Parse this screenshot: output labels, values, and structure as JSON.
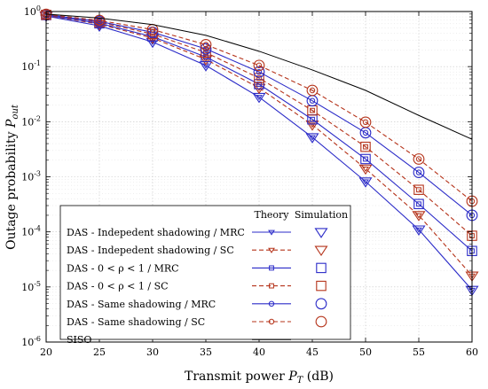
{
  "chart_data": {
    "type": "line",
    "yscale": "log",
    "xlabel_main": "Transmit power ",
    "xlabel_sym": "P",
    "xlabel_sub": "T",
    "xlabel_unit": " (dB)",
    "ylabel_main": "Outage probability ",
    "ylabel_sym": "P",
    "ylabel_sub": "out",
    "xlim": [
      20,
      60
    ],
    "ylim": [
      1e-06,
      1
    ],
    "x_ticks": [
      "20",
      "25",
      "30",
      "35",
      "40",
      "45",
      "50",
      "55",
      "60"
    ],
    "y_ticks": [
      {
        "base": "10",
        "exp": "0"
      },
      {
        "base": "10",
        "exp": "-1"
      },
      {
        "base": "10",
        "exp": "-2"
      },
      {
        "base": "10",
        "exp": "-3"
      },
      {
        "base": "10",
        "exp": "-4"
      },
      {
        "base": "10",
        "exp": "-5"
      },
      {
        "base": "10",
        "exp": "-6"
      }
    ],
    "grid": true,
    "legend_position": "bottom-left",
    "legend_header_theory": "Theory",
    "legend_header_simulation": "Simulation",
    "x": [
      20,
      25,
      30,
      35,
      40,
      45,
      50,
      55,
      60
    ],
    "colors": {
      "blue": "#2b2bc8",
      "red": "#b5331a",
      "black": "#000000"
    },
    "series": [
      {
        "name": "DAS - Indepedent shadowing / MRC",
        "color": "#2b2bc8",
        "dash": false,
        "marker": "triangle-down",
        "values": [
          0.83,
          0.55,
          0.28,
          0.105,
          0.028,
          0.0052,
          0.00082,
          0.00011,
          8.8e-06
        ]
      },
      {
        "name": "DAS - Indepedent shadowing / SC",
        "color": "#b5331a",
        "dash": true,
        "marker": "triangle-down",
        "values": [
          0.85,
          0.59,
          0.33,
          0.135,
          0.041,
          0.0088,
          0.0014,
          0.0002,
          1.6e-05
        ]
      },
      {
        "name": "DAS - 0 < ρ < 1 / MRC",
        "color": "#2b2bc8",
        "dash": false,
        "marker": "square",
        "values": [
          0.86,
          0.61,
          0.35,
          0.15,
          0.048,
          0.011,
          0.0021,
          0.00032,
          4.5e-05
        ]
      },
      {
        "name": "DAS - 0 < ρ < 1 / SC",
        "color": "#b5331a",
        "dash": true,
        "marker": "square",
        "values": [
          0.87,
          0.64,
          0.39,
          0.18,
          0.062,
          0.016,
          0.0035,
          0.00058,
          8.5e-05
        ]
      },
      {
        "name": "DAS - Same shadowing / MRC",
        "color": "#2b2bc8",
        "dash": false,
        "marker": "circle",
        "values": [
          0.88,
          0.66,
          0.42,
          0.21,
          0.08,
          0.024,
          0.0063,
          0.0012,
          0.0002
        ]
      },
      {
        "name": "DAS - Same shadowing / SC",
        "color": "#b5331a",
        "dash": true,
        "marker": "circle",
        "values": [
          0.89,
          0.69,
          0.47,
          0.25,
          0.105,
          0.037,
          0.0098,
          0.0021,
          0.00036
        ]
      },
      {
        "name": "SISO",
        "color": "#000000",
        "dash": false,
        "marker": "none",
        "values": [
          0.9,
          0.76,
          0.58,
          0.37,
          0.19,
          0.087,
          0.037,
          0.013,
          0.0048
        ]
      }
    ]
  }
}
